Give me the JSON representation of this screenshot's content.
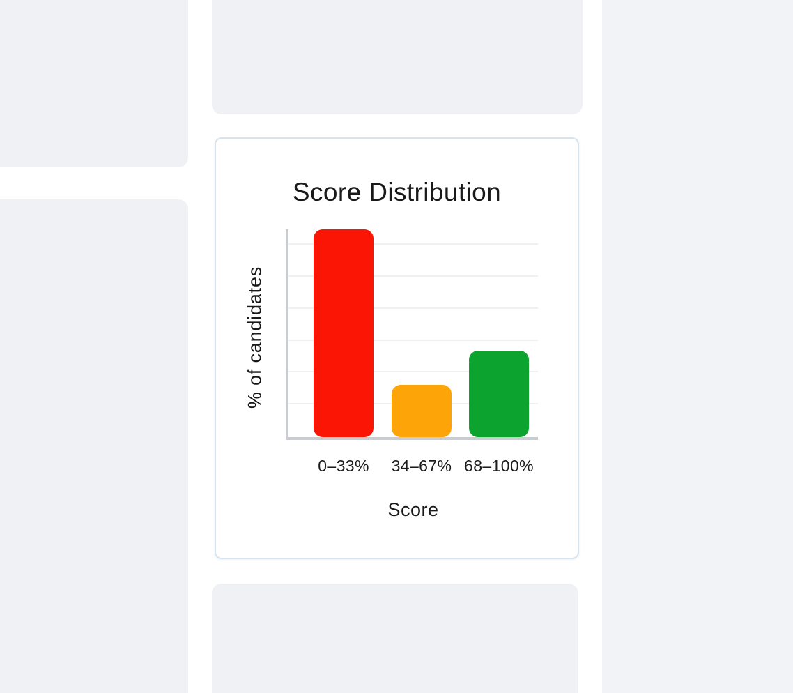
{
  "page": {
    "background_color": "#ffffff",
    "placeholder_color": "#eff1f4",
    "right_panel_color": "#f1f3f6"
  },
  "card": {
    "background_color": "#ffffff",
    "border_color": "#d7e3ee"
  },
  "chart_data": {
    "type": "bar",
    "title": "Score Distribution",
    "categories": [
      "0–33%",
      "34–67%",
      "68–100%"
    ],
    "values": [
      60,
      15,
      25
    ],
    "xlabel": "Score",
    "ylabel": "% of candidates",
    "ylim": [
      0,
      60
    ],
    "y_tick_labels": "none",
    "legend": "none",
    "grid": "horizontal",
    "gridline_count": 6,
    "bar_colors": [
      "#fb1505",
      "#fca408",
      "#0da32f"
    ],
    "axis_color": "#c9cdd1",
    "gridline_color": "#f0f0f0",
    "text_color": "#191919"
  }
}
